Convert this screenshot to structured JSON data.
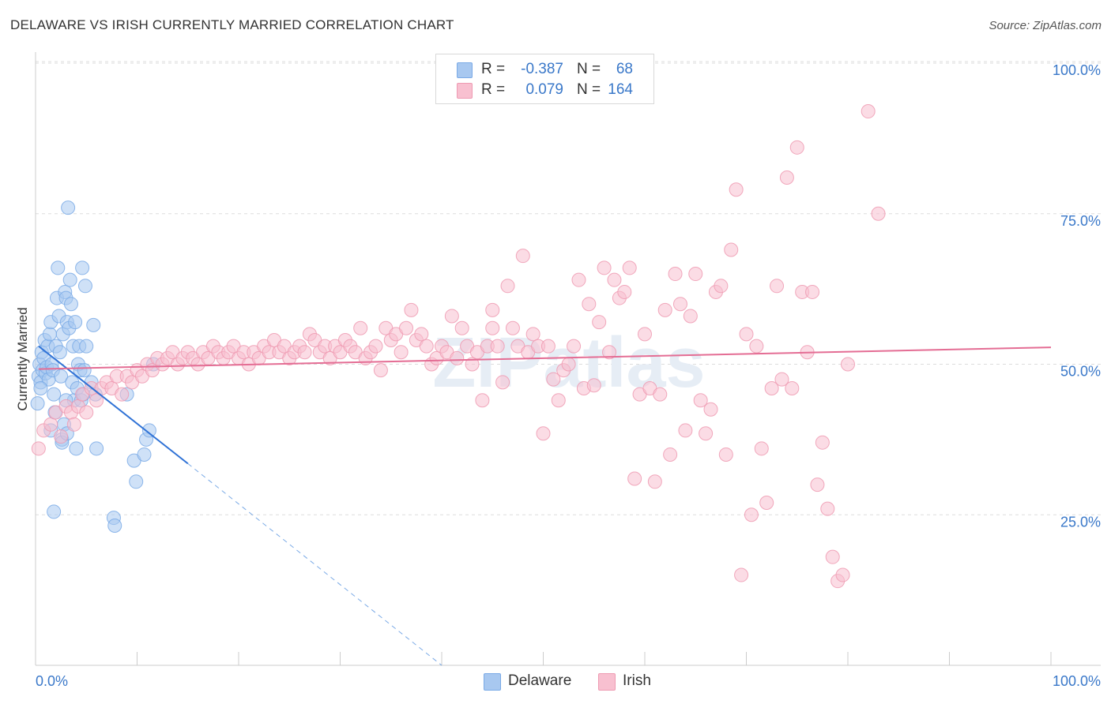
{
  "title": "DELAWARE VS IRISH CURRENTLY MARRIED CORRELATION CHART",
  "source": "Source: ZipAtlas.com",
  "legend": {
    "rows": [
      {
        "r_label": "R =",
        "r_value": "-0.387",
        "n_label": "N =",
        "n_value": "68",
        "color": "#a8c8f0",
        "border": "#7aaae6"
      },
      {
        "r_label": "R =",
        "r_value": "0.079",
        "n_label": "N =",
        "n_value": "164",
        "color": "#f8c0d0",
        "border": "#ee9ab2"
      }
    ]
  },
  "bottom_legend": [
    {
      "label": "Delaware",
      "color": "#a8c8f0",
      "border": "#7aaae6"
    },
    {
      "label": "Irish",
      "color": "#f8c0d0",
      "border": "#ee9ab2"
    }
  ],
  "watermark": "ZIPatlas",
  "chart_data": {
    "type": "scatter",
    "title": "DELAWARE VS IRISH CURRENTLY MARRIED CORRELATION CHART",
    "xlabel": "",
    "ylabel": "Currently Married",
    "xlim": [
      0,
      100
    ],
    "ylim": [
      0,
      100
    ],
    "x_tick_labels": [
      "0.0%",
      "100.0%"
    ],
    "y_tick_labels": [
      "25.0%",
      "50.0%",
      "75.0%",
      "100.0%"
    ],
    "y_ticks": [
      25,
      50,
      75,
      100
    ],
    "grid": "horizontal dashed",
    "series": [
      {
        "name": "Delaware",
        "color": "#7aaae6",
        "fill": "#a8c8f0",
        "trend": {
          "x0": 0.3,
          "y0": 53,
          "x1": 15,
          "y1": 33.5,
          "dashed_to_x": 40,
          "dashed_to_y": 0
        },
        "points": [
          [
            0.2,
            43.5
          ],
          [
            0.3,
            48
          ],
          [
            0.4,
            50
          ],
          [
            0.5,
            47
          ],
          [
            0.6,
            52
          ],
          [
            0.7,
            49
          ],
          [
            0.8,
            51
          ],
          [
            0.9,
            54
          ],
          [
            1.0,
            48.5
          ],
          [
            1.1,
            49.5
          ],
          [
            1.2,
            53
          ],
          [
            1.3,
            47.5
          ],
          [
            1.4,
            55
          ],
          [
            1.5,
            57
          ],
          [
            1.6,
            50
          ],
          [
            1.7,
            49
          ],
          [
            1.8,
            45
          ],
          [
            1.9,
            42
          ],
          [
            2.0,
            53
          ],
          [
            2.1,
            61
          ],
          [
            2.2,
            66
          ],
          [
            2.3,
            58
          ],
          [
            2.4,
            52
          ],
          [
            2.5,
            48
          ],
          [
            2.6,
            37.5
          ],
          [
            2.7,
            55
          ],
          [
            2.8,
            40
          ],
          [
            2.9,
            62
          ],
          [
            3.0,
            61
          ],
          [
            3.1,
            57
          ],
          [
            3.2,
            76
          ],
          [
            3.3,
            56
          ],
          [
            3.4,
            64
          ],
          [
            3.5,
            60
          ],
          [
            3.6,
            47
          ],
          [
            3.7,
            53
          ],
          [
            3.8,
            44
          ],
          [
            3.9,
            57
          ],
          [
            4.0,
            36
          ],
          [
            4.1,
            46
          ],
          [
            4.2,
            50
          ],
          [
            4.3,
            53
          ],
          [
            4.4,
            49
          ],
          [
            4.5,
            44
          ],
          [
            4.6,
            66
          ],
          [
            4.7,
            45
          ],
          [
            4.8,
            49
          ],
          [
            4.9,
            63
          ],
          [
            5.0,
            53
          ],
          [
            5.5,
            47
          ],
          [
            5.7,
            56.5
          ],
          [
            5.9,
            45
          ],
          [
            6.0,
            36
          ],
          [
            7.7,
            24.5
          ],
          [
            7.8,
            23.2
          ],
          [
            9.0,
            45
          ],
          [
            9.7,
            34
          ],
          [
            9.9,
            30.5
          ],
          [
            10.7,
            35
          ],
          [
            10.9,
            37.5
          ],
          [
            11.2,
            39
          ],
          [
            11.6,
            50
          ],
          [
            1.5,
            39
          ],
          [
            2.6,
            37
          ],
          [
            3.1,
            38.5
          ],
          [
            1.8,
            25.5
          ],
          [
            3.0,
            44
          ],
          [
            0.5,
            46
          ]
        ]
      },
      {
        "name": "Irish",
        "color": "#ee9ab2",
        "fill": "#f8c0d0",
        "trend": {
          "x0": 0.3,
          "y0": 49.2,
          "x1": 100,
          "y1": 52.8
        },
        "points": [
          [
            0.3,
            36
          ],
          [
            0.8,
            39
          ],
          [
            1.5,
            40
          ],
          [
            2.0,
            42
          ],
          [
            2.5,
            38
          ],
          [
            3.0,
            43
          ],
          [
            3.5,
            42
          ],
          [
            3.8,
            40
          ],
          [
            4.2,
            43
          ],
          [
            4.6,
            45
          ],
          [
            5.0,
            42
          ],
          [
            5.5,
            46
          ],
          [
            6.0,
            44
          ],
          [
            6.5,
            46
          ],
          [
            7.0,
            47
          ],
          [
            7.5,
            46
          ],
          [
            8.0,
            48
          ],
          [
            8.5,
            45
          ],
          [
            9.0,
            48
          ],
          [
            9.5,
            47
          ],
          [
            10.0,
            49
          ],
          [
            10.5,
            48
          ],
          [
            11.0,
            50
          ],
          [
            11.5,
            49
          ],
          [
            12.0,
            51
          ],
          [
            12.5,
            50
          ],
          [
            13.0,
            51
          ],
          [
            13.5,
            52
          ],
          [
            14.0,
            50
          ],
          [
            14.5,
            51
          ],
          [
            15.0,
            52
          ],
          [
            15.5,
            51
          ],
          [
            16.0,
            50
          ],
          [
            16.5,
            52
          ],
          [
            17.0,
            51
          ],
          [
            17.5,
            53
          ],
          [
            18.0,
            52
          ],
          [
            18.5,
            51
          ],
          [
            19.0,
            52
          ],
          [
            19.5,
            53
          ],
          [
            20.0,
            51
          ],
          [
            20.5,
            52
          ],
          [
            21.0,
            50
          ],
          [
            21.5,
            52
          ],
          [
            22.0,
            51
          ],
          [
            22.5,
            53
          ],
          [
            23.0,
            52
          ],
          [
            23.5,
            54
          ],
          [
            24.0,
            52
          ],
          [
            24.5,
            53
          ],
          [
            25.0,
            51
          ],
          [
            25.5,
            52
          ],
          [
            26.0,
            53
          ],
          [
            26.5,
            52
          ],
          [
            27.0,
            55
          ],
          [
            27.5,
            54
          ],
          [
            28.0,
            52
          ],
          [
            28.5,
            53
          ],
          [
            29.0,
            51
          ],
          [
            29.5,
            53
          ],
          [
            30.0,
            52
          ],
          [
            30.5,
            54
          ],
          [
            31.0,
            53
          ],
          [
            31.5,
            52
          ],
          [
            32.0,
            56
          ],
          [
            32.5,
            51
          ],
          [
            33.0,
            52
          ],
          [
            33.5,
            53
          ],
          [
            34.0,
            49
          ],
          [
            34.5,
            56
          ],
          [
            35.0,
            54
          ],
          [
            35.5,
            55
          ],
          [
            36.0,
            52
          ],
          [
            36.5,
            56
          ],
          [
            37.0,
            59
          ],
          [
            37.5,
            54
          ],
          [
            38.0,
            55
          ],
          [
            38.5,
            53
          ],
          [
            39.0,
            50
          ],
          [
            39.5,
            51
          ],
          [
            40.0,
            53
          ],
          [
            40.5,
            52
          ],
          [
            41.0,
            58
          ],
          [
            41.5,
            51
          ],
          [
            42.0,
            56
          ],
          [
            42.5,
            53
          ],
          [
            43.0,
            50
          ],
          [
            43.5,
            52
          ],
          [
            44.0,
            44
          ],
          [
            44.5,
            53
          ],
          [
            45.0,
            59
          ],
          [
            45.5,
            53
          ],
          [
            46.0,
            47
          ],
          [
            46.5,
            63
          ],
          [
            47.0,
            56
          ],
          [
            47.5,
            53
          ],
          [
            48.0,
            68
          ],
          [
            48.5,
            52
          ],
          [
            49.0,
            55
          ],
          [
            49.5,
            53
          ],
          [
            50.0,
            38.5
          ],
          [
            50.5,
            53
          ],
          [
            51.0,
            47.5
          ],
          [
            51.5,
            44
          ],
          [
            52.0,
            49
          ],
          [
            52.5,
            50
          ],
          [
            53.0,
            53
          ],
          [
            53.5,
            64
          ],
          [
            54.0,
            46
          ],
          [
            54.5,
            60
          ],
          [
            55.0,
            46.5
          ],
          [
            55.5,
            57
          ],
          [
            56.0,
            66
          ],
          [
            56.5,
            52
          ],
          [
            57.0,
            64
          ],
          [
            57.5,
            61
          ],
          [
            58.0,
            62
          ],
          [
            58.5,
            66
          ],
          [
            59.0,
            31
          ],
          [
            59.5,
            45
          ],
          [
            60.0,
            55
          ],
          [
            60.5,
            46
          ],
          [
            61.0,
            30.5
          ],
          [
            61.5,
            45
          ],
          [
            62.0,
            59
          ],
          [
            62.5,
            35
          ],
          [
            63.0,
            65
          ],
          [
            63.5,
            60
          ],
          [
            64.0,
            39
          ],
          [
            64.5,
            58
          ],
          [
            65.0,
            65
          ],
          [
            65.5,
            44
          ],
          [
            66.0,
            38.5
          ],
          [
            66.5,
            42.5
          ],
          [
            67.0,
            62
          ],
          [
            67.5,
            63
          ],
          [
            68.0,
            35
          ],
          [
            68.5,
            69
          ],
          [
            69.0,
            79
          ],
          [
            69.5,
            15
          ],
          [
            70.0,
            55
          ],
          [
            70.5,
            25
          ],
          [
            71.0,
            53
          ],
          [
            71.5,
            36
          ],
          [
            72.0,
            27
          ],
          [
            72.5,
            46
          ],
          [
            73.0,
            63
          ],
          [
            73.5,
            47.5
          ],
          [
            74.0,
            81
          ],
          [
            74.5,
            46
          ],
          [
            75.0,
            86
          ],
          [
            75.5,
            62
          ],
          [
            76.0,
            52
          ],
          [
            76.5,
            62
          ],
          [
            77.0,
            30
          ],
          [
            77.5,
            37
          ],
          [
            78.0,
            26
          ],
          [
            78.5,
            18
          ],
          [
            79.0,
            14
          ],
          [
            79.5,
            15
          ],
          [
            80.0,
            50
          ],
          [
            82.0,
            92
          ],
          [
            83.0,
            75
          ],
          [
            45.0,
            56
          ]
        ]
      }
    ]
  }
}
